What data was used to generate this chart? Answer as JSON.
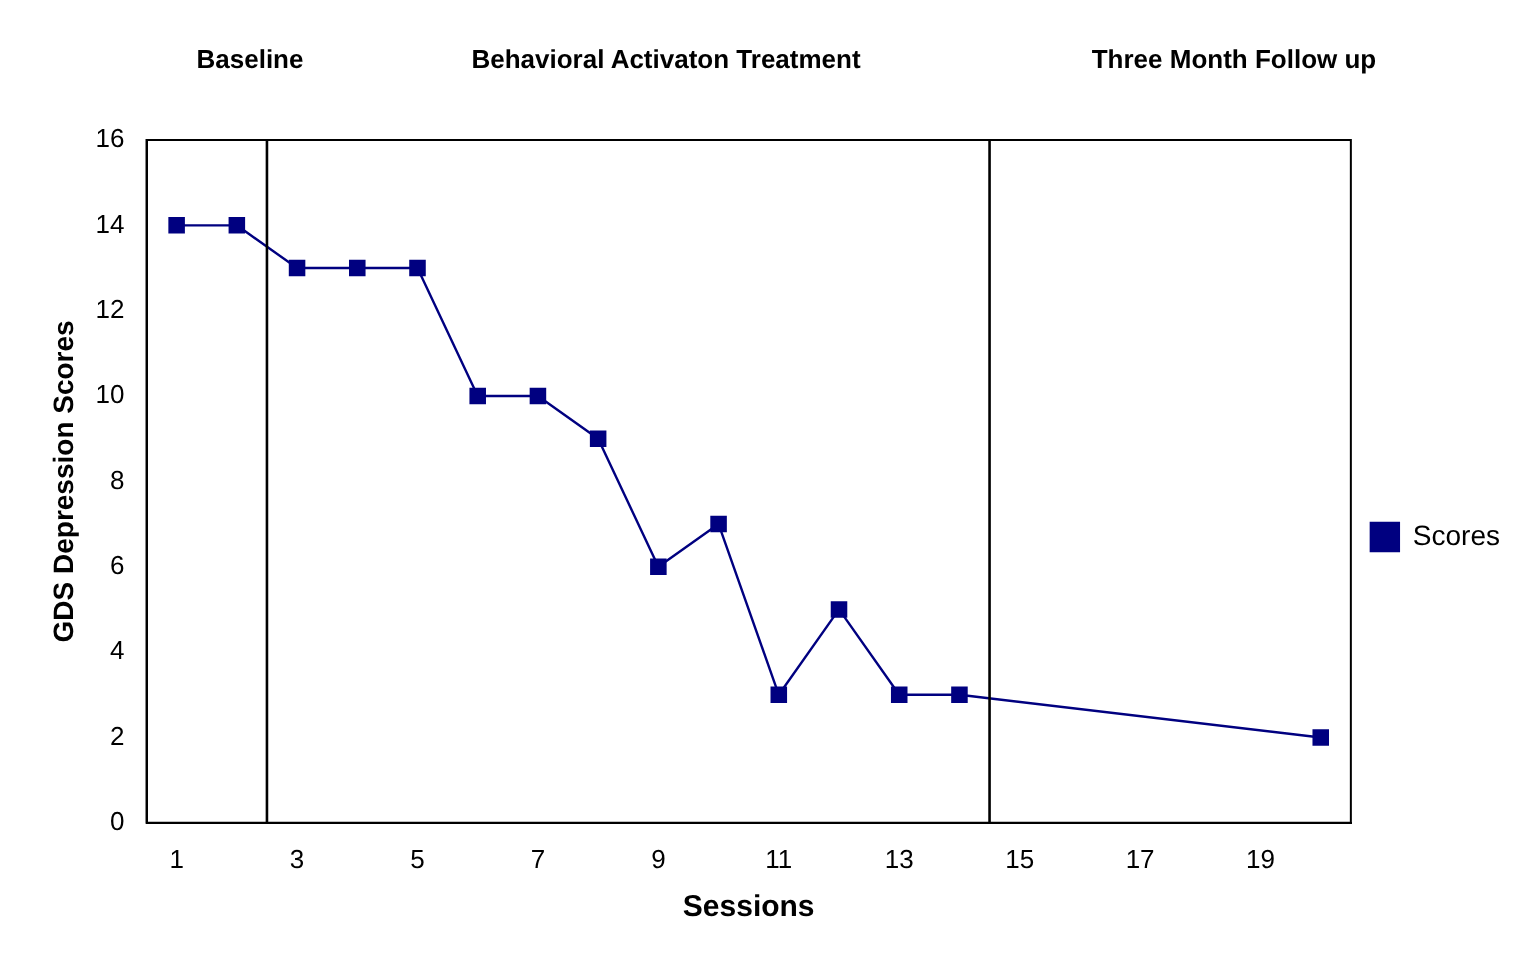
{
  "chart_data": {
    "type": "line",
    "xlabel": "Sessions",
    "ylabel": "GDS Depression Scores",
    "annotations": [
      "Baseline",
      "Behavioral Activaton Treatment",
      "Three Month Follow up"
    ],
    "x": [
      1,
      2,
      3,
      4,
      5,
      6,
      7,
      8,
      9,
      10,
      11,
      12,
      13,
      14,
      20
    ],
    "series": [
      {
        "name": "Scores",
        "color": "#000080",
        "values": [
          14,
          14,
          13,
          13,
          13,
          10,
          10,
          9,
          6,
          7,
          3,
          5,
          3,
          3,
          2
        ]
      }
    ],
    "xlim": [
      0.5,
      20.5
    ],
    "xticks": [
      1,
      3,
      5,
      7,
      9,
      11,
      13,
      15,
      17,
      19
    ],
    "ylim": [
      0,
      16
    ],
    "yticks": [
      0,
      2,
      4,
      6,
      8,
      10,
      12,
      14,
      16
    ],
    "ref_lines": [
      {
        "axis": "x",
        "value": 2.5,
        "color": "#000000"
      },
      {
        "axis": "x",
        "value": 14.5,
        "color": "#000000"
      }
    ],
    "grid": false,
    "legend": "right",
    "marker": "square",
    "line_style": "solid"
  }
}
